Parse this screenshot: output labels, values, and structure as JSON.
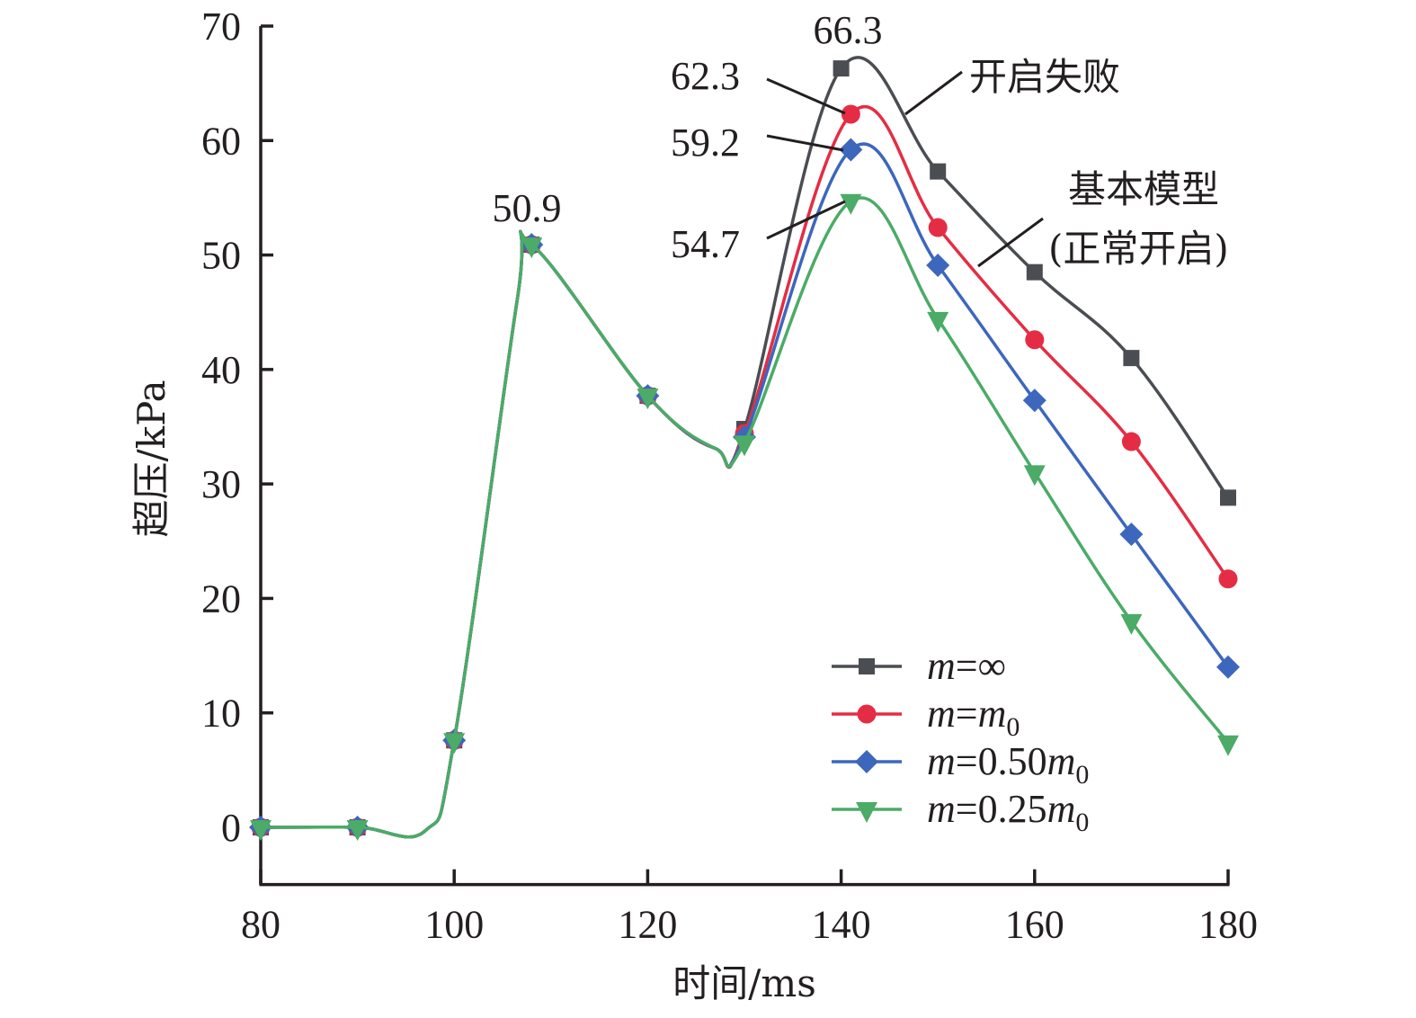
{
  "chart_data": {
    "type": "line",
    "title": "",
    "xlabel": "时间/ms",
    "ylabel": "超压/kPa",
    "xlim": [
      80,
      180
    ],
    "ylim": [
      -5,
      70
    ],
    "xticks": [
      80,
      100,
      120,
      140,
      160,
      180
    ],
    "yticks": [
      0,
      10,
      20,
      30,
      40,
      50,
      60,
      70
    ],
    "grid": false,
    "legend_position": "bottom-right",
    "series": [
      {
        "name": "m=∞",
        "label_main": "m",
        "label_rest": "=∞",
        "label_sub": "",
        "color": "#4a4d52",
        "marker": "square",
        "x": [
          80,
          90,
          100,
          108,
          120,
          130,
          140,
          150,
          160,
          170,
          180
        ],
        "y": [
          0,
          0,
          7.6,
          50.9,
          37.7,
          34.8,
          66.3,
          57.3,
          48.5,
          41.0,
          28.8
        ]
      },
      {
        "name": "m=m0",
        "label_main": "m",
        "label_rest": "=m",
        "label_sub": "0",
        "color": "#e42d44",
        "marker": "circle",
        "x": [
          80,
          90,
          100,
          108,
          120,
          130,
          141,
          150,
          160,
          170,
          180
        ],
        "y": [
          0,
          0,
          7.6,
          50.9,
          37.7,
          34.4,
          62.3,
          52.4,
          42.6,
          33.7,
          21.7
        ]
      },
      {
        "name": "m=0.50m0",
        "label_main": "m",
        "label_rest": "=0.50m",
        "label_sub": "0",
        "color": "#3d67bc",
        "marker": "diamond",
        "x": [
          80,
          90,
          100,
          108,
          120,
          130,
          141,
          150,
          160,
          170,
          180
        ],
        "y": [
          0,
          0,
          7.6,
          50.9,
          37.7,
          34.1,
          59.2,
          49.1,
          37.3,
          25.6,
          14.0
        ]
      },
      {
        "name": "m=0.25m0",
        "label_main": "m",
        "label_rest": "=0.25m",
        "label_sub": "0",
        "color": "#4bab67",
        "marker": "triangle-down",
        "x": [
          80,
          90,
          100,
          108,
          120,
          130,
          141,
          150,
          160,
          170,
          180
        ],
        "y": [
          0,
          0,
          7.6,
          50.9,
          37.7,
          33.6,
          54.7,
          44.4,
          31.0,
          18.0,
          7.4
        ]
      }
    ],
    "annotations": [
      {
        "text": "50.9",
        "x": 108,
        "y": 50.9
      },
      {
        "text": "66.3",
        "x": 140,
        "y": 66.3
      },
      {
        "text": "62.3",
        "x": 141,
        "y": 62.3
      },
      {
        "text": "59.2",
        "x": 141,
        "y": 59.2
      },
      {
        "text": "54.7",
        "x": 141,
        "y": 54.7
      },
      {
        "text": "开启失败",
        "x": 146,
        "y": 62
      },
      {
        "text": "基本模型",
        "x": 153,
        "y": 48
      },
      {
        "text": "(正常开启)",
        "x": 153,
        "y": 48
      }
    ]
  }
}
